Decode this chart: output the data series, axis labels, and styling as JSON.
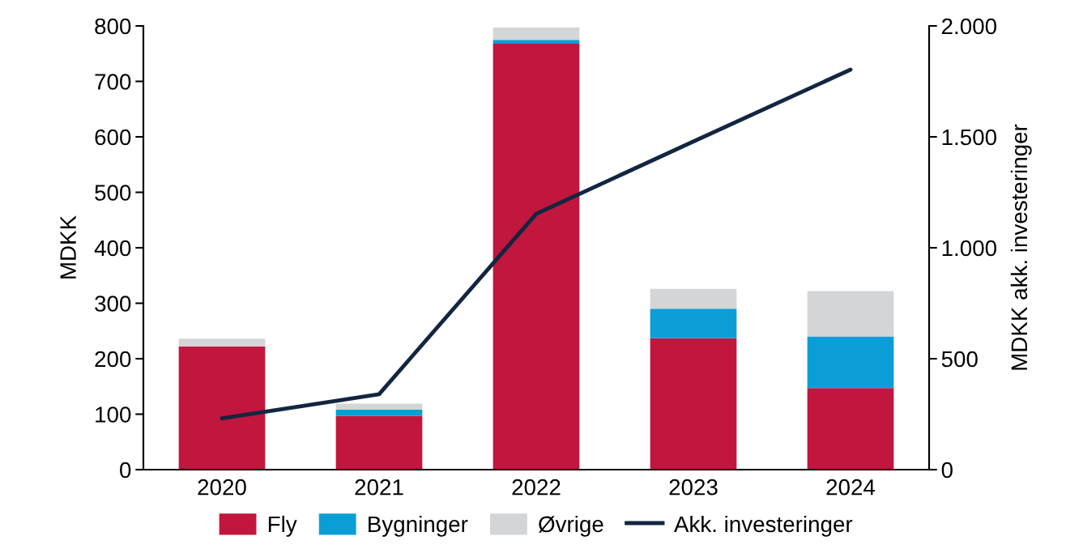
{
  "chart_data": {
    "type": "bar",
    "stacked": true,
    "ylabel": "MDKK",
    "y2label": "MDKK akk. investeringer",
    "categories": [
      "2020",
      "2021",
      "2022",
      "2023",
      "2024"
    ],
    "series": [
      {
        "name": "Fly",
        "color": "#c1163e",
        "values": [
          222,
          97,
          768,
          237,
          147
        ]
      },
      {
        "name": "Bygninger",
        "color": "#0b9ed6",
        "values": [
          0,
          11,
          7,
          53,
          93
        ]
      },
      {
        "name": "Øvrige",
        "color": "#d4d5d7",
        "values": [
          14,
          11,
          22,
          36,
          82
        ]
      },
      {
        "name": "Akk. investeringer",
        "type": "line",
        "axis": "y2",
        "color": "#132640",
        "values": [
          231,
          340,
          1153,
          1479,
          1803
        ]
      }
    ],
    "ylim": [
      0,
      800
    ],
    "yticks": [
      0,
      100,
      200,
      300,
      400,
      500,
      600,
      700,
      800
    ],
    "y2lim": [
      0,
      2000
    ],
    "y2ticks": [
      0,
      {
        "value": 500,
        "label": "500"
      },
      {
        "value": 1000,
        "label": "1.000"
      },
      {
        "value": 1500,
        "label": "1.500"
      },
      {
        "value": 2000,
        "label": "2.000"
      }
    ],
    "legend": "bottom",
    "grid": false
  }
}
